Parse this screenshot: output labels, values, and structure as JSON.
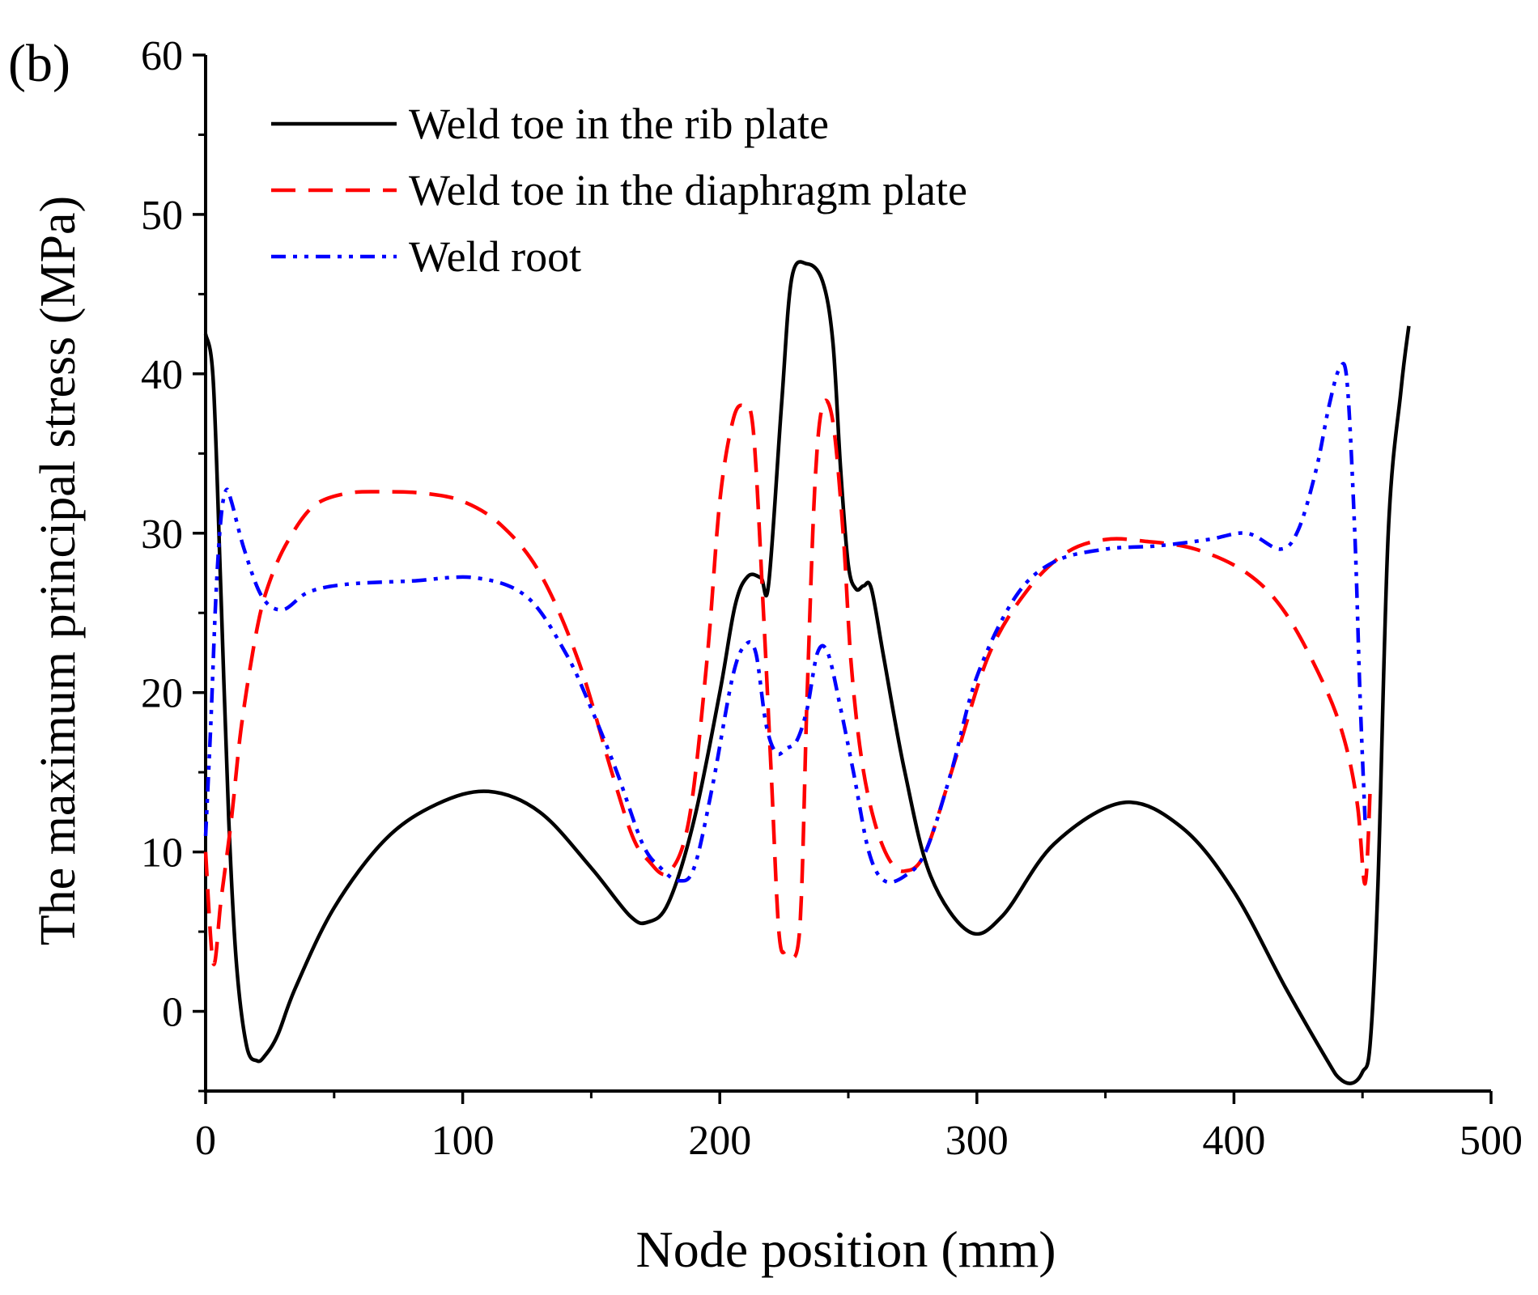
{
  "chart_data": {
    "type": "line",
    "panel_label": "(b)",
    "xlabel": "Node position (mm)",
    "ylabel": "The  maximum principal stress (MPa)",
    "xlim": [
      0,
      500
    ],
    "ylim": [
      -5,
      60
    ],
    "xticks": [
      0,
      100,
      200,
      300,
      400,
      500
    ],
    "yticks": [
      0,
      10,
      20,
      30,
      40,
      50,
      60
    ],
    "xtick_labels": [
      "0",
      "100",
      "200",
      "300",
      "400",
      "500"
    ],
    "ytick_labels": [
      "0",
      "10",
      "20",
      "30",
      "40",
      "50",
      "60"
    ],
    "grid": false,
    "legend_position": "top-left",
    "series": [
      {
        "name": "Weld toe in the rib plate",
        "color": "#000000",
        "dash": "solid",
        "x": [
          0,
          3,
          6,
          9,
          12,
          16,
          20,
          23,
          28,
          35,
          50,
          70,
          90,
          110,
          130,
          150,
          165,
          172,
          180,
          190,
          200,
          206,
          211,
          216,
          219,
          224,
          228,
          234,
          240,
          244,
          247,
          250,
          253,
          256,
          259,
          264,
          272,
          282,
          297,
          310,
          330,
          357,
          380,
          400,
          420,
          436,
          441,
          446,
          450,
          453,
          456,
          460,
          465,
          468
        ],
        "y": [
          42.5,
          39.5,
          26,
          12,
          3,
          -2.2,
          -3.1,
          -2.8,
          -1.5,
          1.5,
          6.5,
          10.8,
          13,
          13.8,
          12.5,
          9,
          6,
          5.6,
          6.8,
          12,
          20,
          25.5,
          27.3,
          27.2,
          26.8,
          38,
          46,
          46.9,
          45.8,
          42,
          34,
          28,
          26.5,
          26.7,
          26.5,
          22,
          15,
          8.5,
          5,
          6,
          10.5,
          13.1,
          11.5,
          7.5,
          1.5,
          -3,
          -4.2,
          -4.5,
          -3.8,
          -2,
          8,
          30,
          39,
          43
        ]
      },
      {
        "name": "Weld toe in the diaphragm plate",
        "color": "#ff0000",
        "dash": "dashed",
        "x": [
          0,
          3,
          6,
          10,
          14,
          20,
          25,
          32,
          42,
          55,
          70,
          85,
          100,
          115,
          130,
          145,
          158,
          166,
          172,
          180,
          188,
          195,
          200,
          205,
          209,
          213,
          217,
          220,
          223,
          226,
          231,
          234,
          237,
          240,
          244,
          248,
          251,
          255,
          260,
          266,
          272,
          280,
          292,
          305,
          320,
          335,
          350,
          365,
          385,
          405,
          420,
          435,
          443,
          448,
          451,
          453
        ],
        "y": [
          10,
          3,
          7,
          12,
          18,
          24,
          27,
          29.5,
          31.7,
          32.5,
          32.6,
          32.5,
          32,
          30.5,
          27.5,
          22,
          15,
          11,
          9.5,
          8.7,
          12,
          22,
          32,
          37,
          38,
          36.5,
          25,
          15,
          5,
          3.8,
          5,
          20,
          33,
          38,
          37,
          30,
          22,
          16,
          12,
          9.5,
          8.8,
          10,
          16,
          22.5,
          26.5,
          28.8,
          29.6,
          29.5,
          29,
          27.5,
          25,
          20.5,
          17,
          13,
          8,
          14
        ]
      },
      {
        "name": "Weld root",
        "color": "#0000ff",
        "dash": "dashdotdot",
        "x": [
          0,
          2,
          4,
          6,
          8,
          10,
          15,
          22,
          30,
          40,
          55,
          80,
          105,
          125,
          140,
          150,
          160,
          170,
          177,
          184,
          190,
          197,
          205,
          210,
          214,
          218,
          222,
          226,
          230,
          234,
          238,
          242,
          247,
          252,
          258,
          264,
          272,
          280,
          290,
          300,
          315,
          330,
          350,
          370,
          390,
          405,
          418,
          425,
          432,
          437,
          441,
          444,
          447,
          449,
          451
        ],
        "y": [
          11,
          18,
          26,
          31,
          32.7,
          32,
          29,
          26,
          25.2,
          26.3,
          26.8,
          27,
          27.2,
          26,
          22.5,
          19,
          15,
          10.5,
          9,
          8.2,
          9,
          14,
          21,
          23,
          22.5,
          18,
          16.2,
          16.5,
          17,
          19,
          22.5,
          22.5,
          19,
          15,
          10,
          8.2,
          8.5,
          10,
          15,
          21,
          26,
          28.2,
          29,
          29.2,
          29.6,
          30,
          29,
          30.2,
          34,
          38,
          40.3,
          39.5,
          30,
          20,
          12
        ]
      }
    ]
  }
}
